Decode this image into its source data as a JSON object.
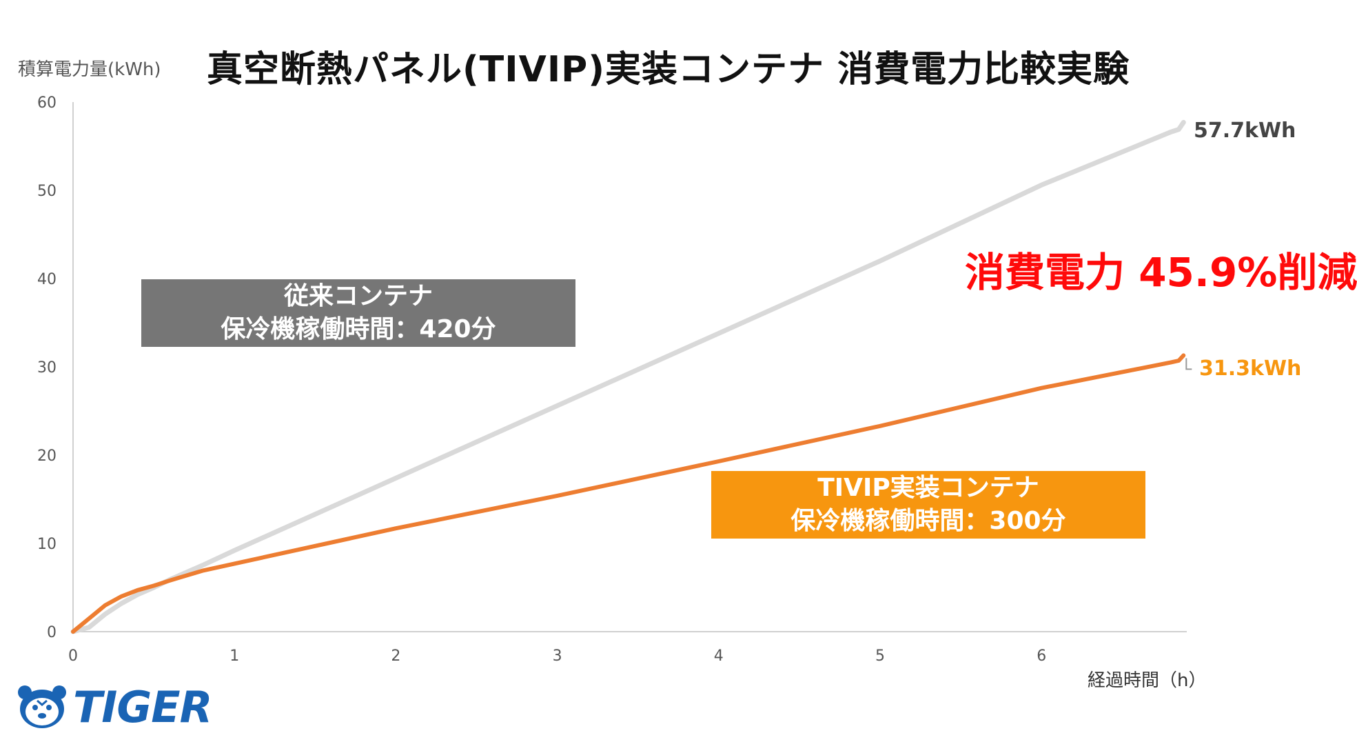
{
  "chart_data": {
    "type": "line",
    "title": "真空断熱パネル(TIVIP)実装コンテナ 消費電力比較実験",
    "ylabel": "積算電力量(kWh)",
    "xlabel": "経過時間（h）",
    "xlim": [
      0,
      6.9
    ],
    "ylim": [
      0,
      60
    ],
    "x_ticks": [
      "0",
      "1",
      "2",
      "3",
      "4",
      "5",
      "6"
    ],
    "y_ticks": [
      "0",
      "10",
      "20",
      "30",
      "40",
      "50",
      "60"
    ],
    "grid": false,
    "series": [
      {
        "name": "従来コンテナ",
        "color": "#d9d9d9",
        "x": [
          0,
          0.1,
          0.2,
          0.3,
          0.4,
          0.5,
          0.6,
          0.8,
          1,
          2,
          3,
          4,
          5,
          6,
          6.8,
          6.85,
          6.88
        ],
        "y": [
          0,
          0.5,
          2.0,
          3.2,
          4.2,
          5.0,
          5.9,
          7.5,
          9.2,
          17.4,
          25.6,
          33.8,
          42.0,
          50.6,
          56.6,
          56.9,
          57.7
        ]
      },
      {
        "name": "TIVIP実装コンテナ",
        "color": "#ed7d31",
        "x": [
          0,
          0.1,
          0.2,
          0.3,
          0.4,
          0.5,
          0.6,
          0.8,
          1,
          2,
          3,
          4,
          5,
          6,
          6.8,
          6.85,
          6.88
        ],
        "y": [
          0,
          1.5,
          3.0,
          4.0,
          4.7,
          5.2,
          5.8,
          6.9,
          7.7,
          11.7,
          15.4,
          19.3,
          23.3,
          27.6,
          30.5,
          30.7,
          31.3
        ]
      }
    ],
    "annotations": {
      "legacy_box": {
        "line1": "従来コンテナ",
        "line2": "保冷機稼働時間：420分"
      },
      "tivip_box": {
        "line1": "TIVIP実装コンテナ",
        "line2": "保冷機稼働時間：300分"
      },
      "reduction": "消費電力 45.9%削減",
      "legacy_end": "57.7kWh",
      "tivip_end": "31.3kWh"
    }
  },
  "logo": {
    "text": "TIGER"
  },
  "colors": {
    "accent_red": "#ff0a0a",
    "orange": "#f7960f",
    "gray_box": "#767676",
    "logo_blue": "#1a64b4"
  }
}
